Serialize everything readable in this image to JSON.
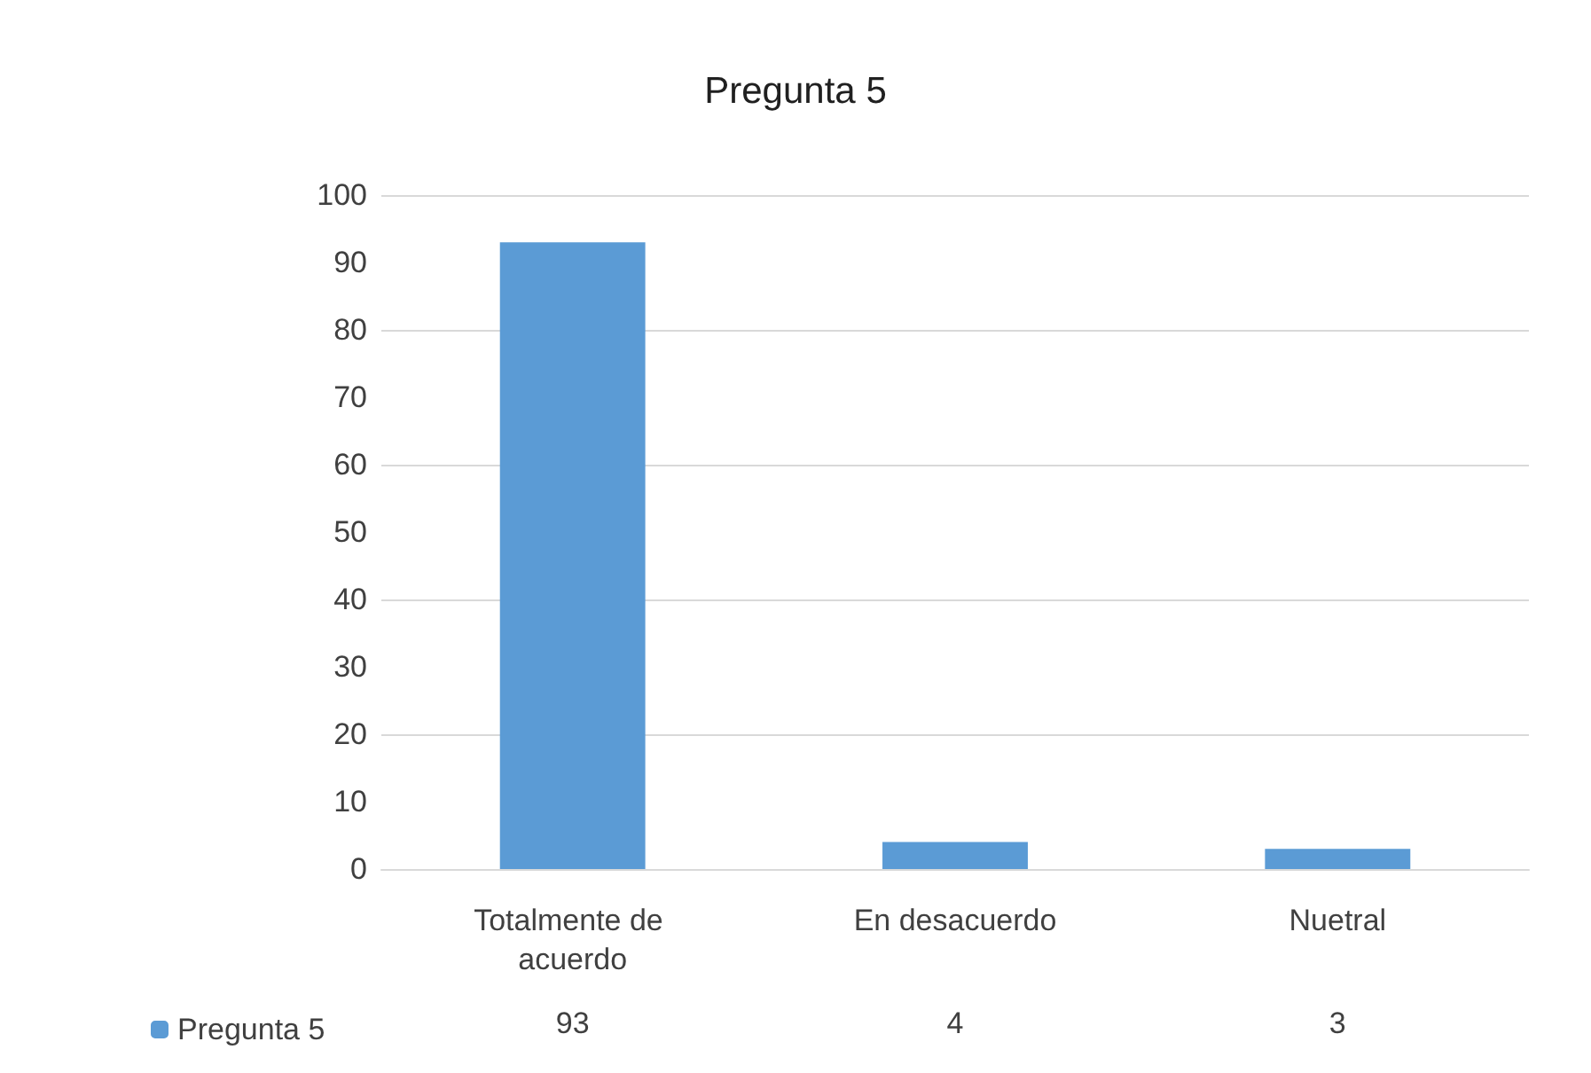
{
  "chart_data": {
    "type": "bar",
    "title": "Pregunta 5",
    "categories": [
      "Totalmente de acuerdo",
      "En desacuerdo",
      "Nuetral"
    ],
    "series": [
      {
        "name": "Pregunta 5",
        "color": "#5b9bd5",
        "values": [
          93,
          4,
          3
        ]
      }
    ],
    "ylim": [
      0,
      100
    ],
    "yticks": [
      0,
      10,
      20,
      30,
      40,
      50,
      60,
      70,
      80,
      90,
      100
    ],
    "grid": "y",
    "legend": "bottom",
    "data_labels": true
  }
}
